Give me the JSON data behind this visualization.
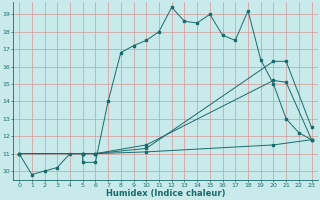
{
  "xlabel": "Humidex (Indice chaleur)",
  "bg_color": "#c8eaea",
  "grid_color": "#d49898",
  "line_color": "#1a6b6b",
  "xlim": [
    -0.5,
    23.5
  ],
  "ylim": [
    9.5,
    19.7
  ],
  "xticks": [
    0,
    1,
    2,
    3,
    4,
    5,
    6,
    7,
    8,
    9,
    10,
    11,
    12,
    13,
    14,
    15,
    16,
    17,
    18,
    19,
    20,
    21,
    22,
    23
  ],
  "yticks": [
    10,
    11,
    12,
    13,
    14,
    15,
    16,
    17,
    18,
    19
  ],
  "line1_x": [
    0,
    1,
    2,
    3,
    4,
    5,
    5,
    6,
    7,
    8,
    9,
    10,
    11,
    12,
    13,
    14,
    15,
    16,
    17,
    18,
    19,
    20,
    21,
    22,
    23
  ],
  "line1_y": [
    11,
    9.8,
    10,
    10.2,
    11,
    11,
    10.5,
    10.5,
    14,
    16.8,
    17.2,
    17.5,
    18,
    19.4,
    18.6,
    18.5,
    19,
    17.8,
    17.5,
    19.2,
    16.4,
    15,
    13,
    12.2,
    11.8
  ],
  "line2_x": [
    0,
    5,
    6,
    10,
    20,
    21,
    23
  ],
  "line2_y": [
    11,
    11,
    11,
    11.5,
    15.2,
    15.1,
    11.8
  ],
  "line3_x": [
    0,
    5,
    6,
    10,
    20,
    21,
    23
  ],
  "line3_y": [
    11,
    11,
    11,
    11.3,
    16.3,
    16.3,
    12.5
  ],
  "line4_x": [
    0,
    5,
    6,
    10,
    20,
    23
  ],
  "line4_y": [
    11,
    11,
    11,
    11.1,
    11.5,
    11.8
  ]
}
